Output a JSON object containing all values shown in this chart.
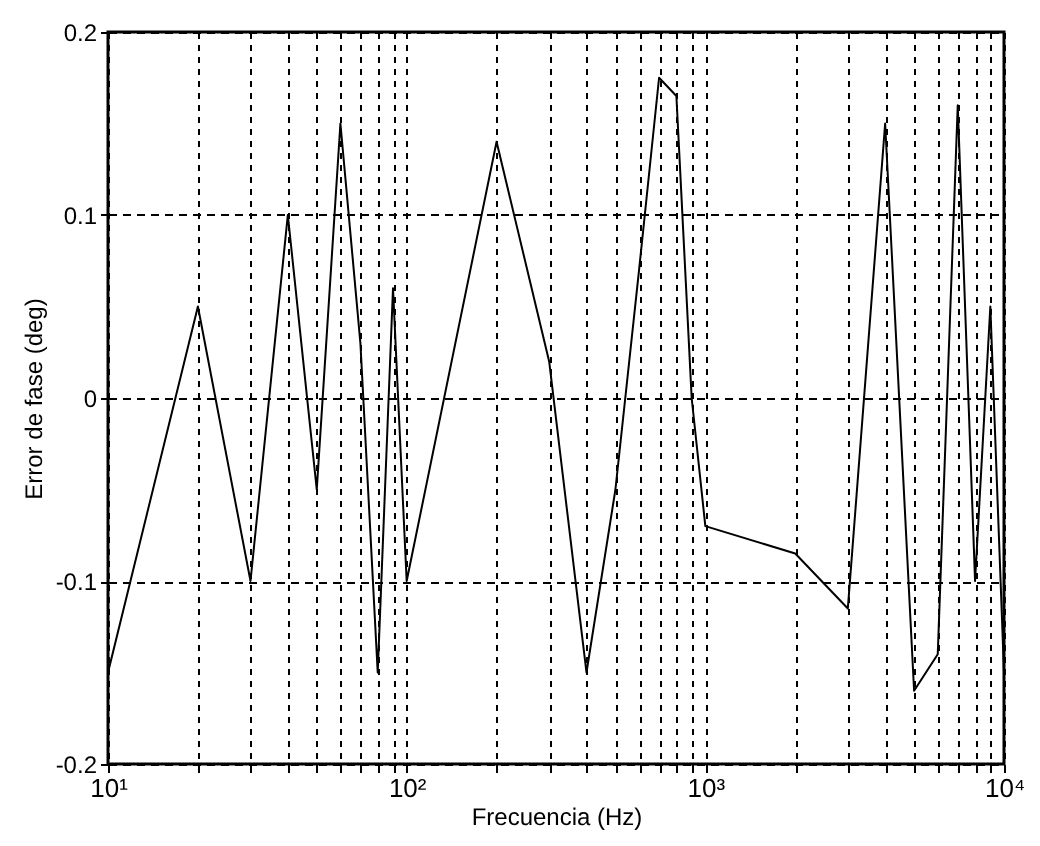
{
  "chart_data": {
    "type": "line",
    "xlabel": "Frecuencia (Hz)",
    "ylabel": "Error de fase (deg)",
    "log": "x",
    "grid": true,
    "line_style": "solid",
    "x": [
      10,
      20,
      30,
      40,
      50,
      60,
      70,
      80,
      90,
      100,
      200,
      300,
      400,
      500,
      600,
      700,
      800,
      900,
      1000,
      2000,
      3000,
      4000,
      5000,
      6000,
      7000,
      8000,
      9000,
      10000
    ],
    "series": [
      {
        "color": "#000000",
        "values": [
          -0.15,
          0.05,
          -0.1,
          0.1,
          -0.05,
          0.15,
          0.03,
          -0.15,
          0.06,
          -0.1,
          0.14,
          0.02,
          -0.15,
          -0.05,
          0.07,
          0.175,
          0.165,
          0.0,
          -0.07,
          -0.085,
          -0.115,
          0.15,
          -0.16,
          -0.14,
          0.16,
          -0.1,
          0.05,
          -0.15
        ]
      }
    ],
    "xlim": [
      10,
      10000
    ],
    "ylim": [
      -0.2,
      0.2
    ],
    "yticks": [
      -0.2,
      -0.1,
      0,
      0.1,
      0.2
    ],
    "xticks": [
      {
        "value": 10,
        "label": "10¹"
      },
      {
        "value": 20,
        "label": null
      },
      {
        "value": 30,
        "label": null
      },
      {
        "value": 40,
        "label": null
      },
      {
        "value": 50,
        "label": null
      },
      {
        "value": 60,
        "label": null
      },
      {
        "value": 70,
        "label": null
      },
      {
        "value": 80,
        "label": null
      },
      {
        "value": 90,
        "label": null
      },
      {
        "value": 100,
        "label": "10²"
      },
      {
        "value": 200,
        "label": null
      },
      {
        "value": 300,
        "label": null
      },
      {
        "value": 400,
        "label": null
      },
      {
        "value": 500,
        "label": null
      },
      {
        "value": 600,
        "label": null
      },
      {
        "value": 700,
        "label": null
      },
      {
        "value": 800,
        "label": null
      },
      {
        "value": 900,
        "label": null
      },
      {
        "value": 1000,
        "label": "10³"
      },
      {
        "value": 2000,
        "label": null
      },
      {
        "value": 3000,
        "label": null
      },
      {
        "value": 4000,
        "label": null
      },
      {
        "value": 5000,
        "label": null
      },
      {
        "value": 6000,
        "label": null
      },
      {
        "value": 7000,
        "label": null
      },
      {
        "value": 8000,
        "label": null
      },
      {
        "value": 9000,
        "label": null
      },
      {
        "value": 10000,
        "label": "10⁴"
      }
    ]
  }
}
